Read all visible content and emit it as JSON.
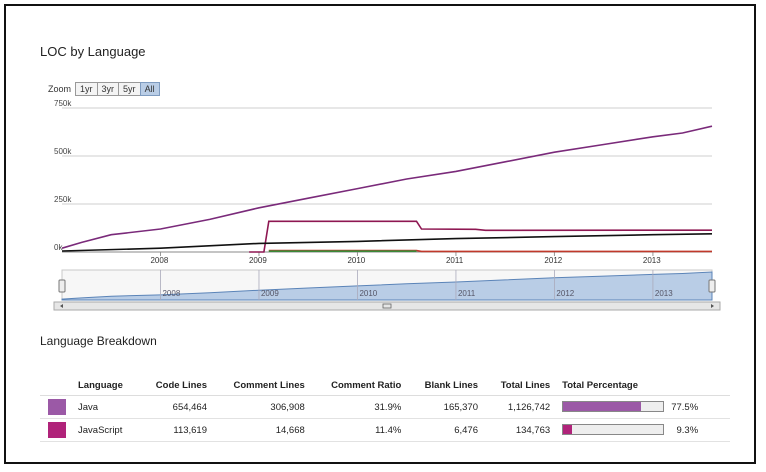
{
  "loc_chart": {
    "title": "LOC by Language",
    "zoom": {
      "label": "Zoom",
      "options": [
        "1yr",
        "3yr",
        "5yr",
        "All"
      ],
      "selected": "All"
    },
    "chart_data": {
      "type": "line",
      "title": "LOC by Language",
      "xlabel": "",
      "ylabel": "",
      "xlim": [
        2007.0,
        2013.6
      ],
      "ylim": [
        0,
        750000
      ],
      "x_ticks": [
        "2008",
        "2009",
        "2010",
        "2011",
        "2012",
        "2013"
      ],
      "y_ticks": [
        "0k",
        "250k",
        "500k",
        "750k"
      ],
      "grid": true,
      "series": [
        {
          "name": "Java",
          "color": "#7a2a7a",
          "points": [
            [
              2007.0,
              20000
            ],
            [
              2007.2,
              50000
            ],
            [
              2007.5,
              90000
            ],
            [
              2008.0,
              120000
            ],
            [
              2008.5,
              170000
            ],
            [
              2009.0,
              230000
            ],
            [
              2009.5,
              280000
            ],
            [
              2010.0,
              330000
            ],
            [
              2010.5,
              380000
            ],
            [
              2011.0,
              420000
            ],
            [
              2011.5,
              470000
            ],
            [
              2012.0,
              520000
            ],
            [
              2012.5,
              560000
            ],
            [
              2013.0,
              600000
            ],
            [
              2013.3,
              620000
            ],
            [
              2013.6,
              655000
            ]
          ]
        },
        {
          "name": "JavaScript",
          "color": "#8e1752",
          "points": [
            [
              2008.9,
              0
            ],
            [
              2009.05,
              0
            ],
            [
              2009.1,
              160000
            ],
            [
              2010.6,
              160000
            ],
            [
              2010.65,
              120000
            ],
            [
              2011.2,
              118000
            ],
            [
              2011.3,
              113000
            ],
            [
              2013.6,
              113619
            ]
          ]
        },
        {
          "name": "",
          "color": "#111111",
          "points": [
            [
              2007.0,
              5000
            ],
            [
              2008.0,
              20000
            ],
            [
              2009.0,
              45000
            ],
            [
              2010.0,
              55000
            ],
            [
              2011.0,
              70000
            ],
            [
              2012.0,
              80000
            ],
            [
              2013.0,
              90000
            ],
            [
              2013.6,
              95000
            ]
          ]
        },
        {
          "name": "",
          "color": "#c0392b",
          "points": [
            [
              2009.1,
              8000
            ],
            [
              2010.6,
              8000
            ],
            [
              2010.65,
              3000
            ],
            [
              2013.6,
              3000
            ]
          ]
        },
        {
          "name": "",
          "color": "#3a8a3a",
          "points": [
            [
              2009.1,
              4000
            ],
            [
              2010.6,
              4000
            ]
          ]
        }
      ]
    },
    "navigator": {
      "x_ticks": [
        "2008",
        "2009",
        "2010",
        "2011",
        "2012",
        "2013"
      ],
      "fill_color": "#b9cde6",
      "line_color": "#5b84b8"
    }
  },
  "breakdown": {
    "title": "Language Breakdown",
    "headers": {
      "language": "Language",
      "code": "Code Lines",
      "comment": "Comment Lines",
      "ratio": "Comment Ratio",
      "blank": "Blank Lines",
      "total": "Total Lines",
      "percentage": "Total Percentage"
    },
    "rows": [
      {
        "language": "Java",
        "color": "#9b59a6",
        "code": "654,464",
        "comment": "306,908",
        "ratio": "31.9%",
        "blank": "165,370",
        "total": "1,126,742",
        "percent_value": 77.5,
        "percent": "77.5%"
      },
      {
        "language": "JavaScript",
        "color": "#b0237a",
        "code": "113,619",
        "comment": "14,668",
        "ratio": "11.4%",
        "blank": "6,476",
        "total": "134,763",
        "percent_value": 9.3,
        "percent": "9.3%"
      }
    ]
  }
}
